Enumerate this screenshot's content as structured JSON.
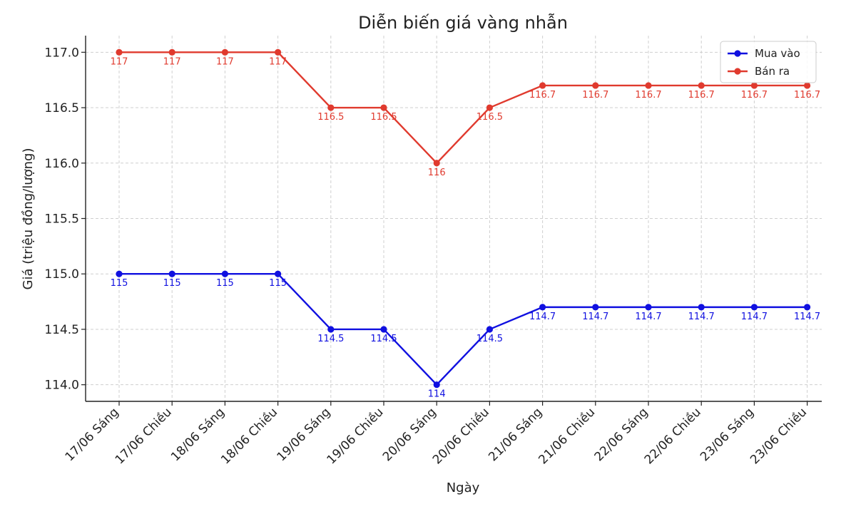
{
  "chart_data": {
    "type": "line",
    "title": "Diễn biến giá vàng nhẫn",
    "xlabel": "Ngày",
    "ylabel": "Giá (triệu đồng/lượng)",
    "categories": [
      "17/06 Sáng",
      "17/06 Chiều",
      "18/06 Sáng",
      "18/06 Chiều",
      "19/06 Sáng",
      "19/06 Chiều",
      "20/06 Sáng",
      "20/06 Chiều",
      "21/06 Sáng",
      "21/06 Chiều",
      "22/06 Sáng",
      "22/06 Chiều",
      "23/06 Sáng",
      "23/06 Chiều"
    ],
    "ylim": [
      113.85,
      117.15
    ],
    "yticks": [
      114.0,
      114.5,
      115.0,
      115.5,
      116.0,
      116.5,
      117.0
    ],
    "ytick_labels": [
      "114.0",
      "114.5",
      "115.0",
      "115.5",
      "116.0",
      "116.5",
      "117.0"
    ],
    "grid": true,
    "legend_position": "top-right",
    "series": [
      {
        "name": "Mua vào",
        "color": "#1010e0",
        "values": [
          115,
          115,
          115,
          115,
          114.5,
          114.5,
          114,
          114.5,
          114.7,
          114.7,
          114.7,
          114.7,
          114.7,
          114.7
        ],
        "labels": [
          "115",
          "115",
          "115",
          "115",
          "114.5",
          "114.5",
          "114",
          "114.5",
          "114.7",
          "114.7",
          "114.7",
          "114.7",
          "114.7",
          "114.7"
        ]
      },
      {
        "name": "Bán ra",
        "color": "#e03a2e",
        "values": [
          117,
          117,
          117,
          117,
          116.5,
          116.5,
          116,
          116.5,
          116.7,
          116.7,
          116.7,
          116.7,
          116.7,
          116.7
        ],
        "labels": [
          "117",
          "117",
          "117",
          "117",
          "116.5",
          "116.5",
          "116",
          "116.5",
          "116.7",
          "116.7",
          "116.7",
          "116.7",
          "116.7",
          "116.7"
        ]
      }
    ]
  }
}
